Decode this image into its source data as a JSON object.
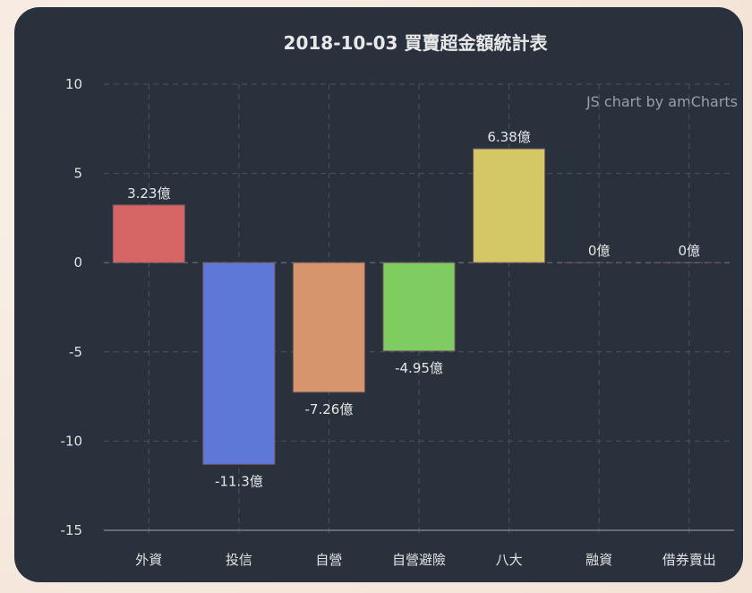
{
  "chart_data": {
    "type": "bar",
    "title": "2018-10-03 買賣超金額統計表",
    "credit": "JS chart by amCharts",
    "xlabel": "",
    "ylabel": "",
    "ylim": [
      -15,
      10
    ],
    "yticks": [
      "10",
      "5",
      "0",
      "-5",
      "-10",
      "-15"
    ],
    "grid": true,
    "unit_suffix": "億",
    "categories": [
      "外資",
      "投信",
      "自營",
      "自營避險",
      "八大",
      "融資",
      "借券賣出"
    ],
    "values": [
      3.23,
      -11.3,
      -7.26,
      -4.95,
      6.38,
      0,
      0
    ],
    "value_labels": [
      "3.23億",
      "-11.3億",
      "-7.26億",
      "-4.95億",
      "6.38億",
      "0億",
      "0億"
    ],
    "colors": [
      "#d66565",
      "#5d78d6",
      "#d6956d",
      "#7fcc60",
      "#d4c866",
      "#d66565",
      "#d66565"
    ]
  },
  "theme": {
    "panel_bg": "#29313c",
    "page_bg": "#f7ece2",
    "grid_color": "#4a525d",
    "text_color": "#e2e2e2"
  }
}
